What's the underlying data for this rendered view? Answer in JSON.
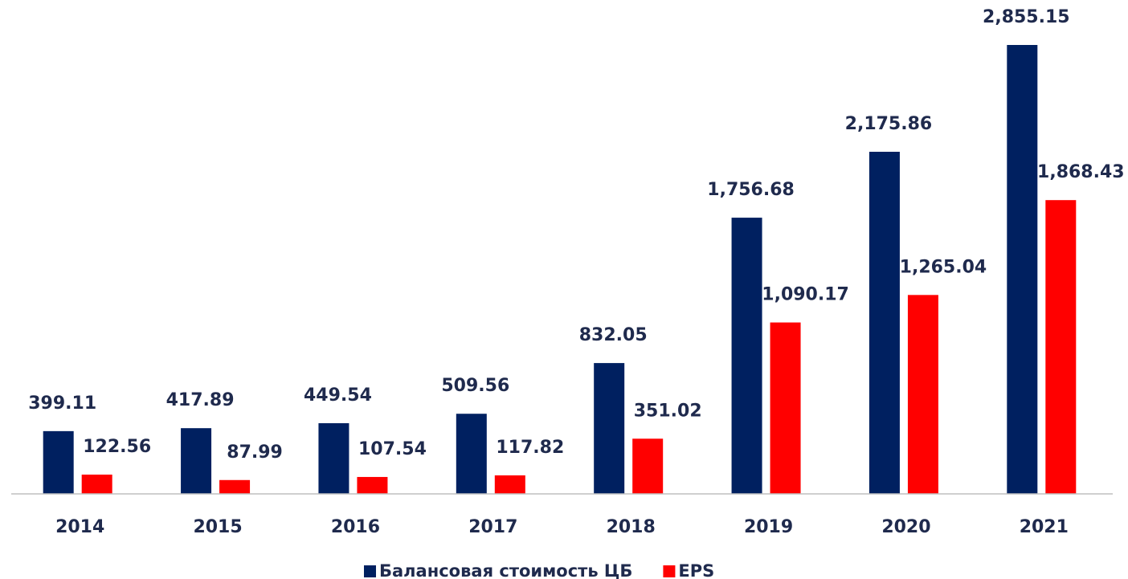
{
  "chart_data": {
    "type": "bar",
    "categories": [
      "2014",
      "2015",
      "2016",
      "2017",
      "2018",
      "2019",
      "2020",
      "2021"
    ],
    "series": [
      {
        "name": "Балансовая стоимость ЦБ",
        "color": "#002060",
        "values": [
          399.11,
          417.89,
          449.54,
          509.56,
          832.05,
          1756.68,
          2175.86,
          2855.15
        ],
        "value_labels": [
          "399.11",
          "417.89",
          "449.54",
          "509.56",
          "832.05",
          "1,756.68",
          "2,175.86",
          "2,855.15"
        ]
      },
      {
        "name": "EPS",
        "color": "#ff0000",
        "values": [
          122.56,
          87.99,
          107.54,
          117.82,
          351.02,
          1090.17,
          1265.04,
          1868.43
        ],
        "value_labels": [
          "122.56",
          "87.99",
          "107.54",
          "117.82",
          "351.02",
          "1,090.17",
          "1,265.04",
          "1,868.43"
        ]
      }
    ],
    "legend": "bottom"
  }
}
